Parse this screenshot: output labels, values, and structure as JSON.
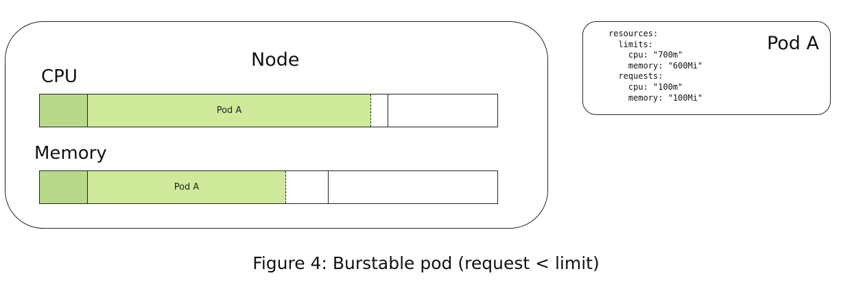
{
  "node": {
    "title": "Node"
  },
  "cpu": {
    "label": "CPU",
    "pod_label": "Pod A",
    "request_fraction": 0.1,
    "limit_fraction": 0.7
  },
  "memory": {
    "label": "Memory",
    "pod_label": "Pod A",
    "request_fraction": 0.1,
    "limit_fraction": 0.6
  },
  "spec": {
    "title": "Pod A",
    "yaml": "resources:\n  limits:\n    cpu: \"700m\"\n    memory: \"600Mi\"\n  requests:\n    cpu: \"100m\"\n    memory: \"100Mi\""
  },
  "colors": {
    "request_fill": "#b9d98a",
    "usage_fill": "#cfe99a"
  },
  "caption": "Figure 4: Burstable pod (request < limit)"
}
